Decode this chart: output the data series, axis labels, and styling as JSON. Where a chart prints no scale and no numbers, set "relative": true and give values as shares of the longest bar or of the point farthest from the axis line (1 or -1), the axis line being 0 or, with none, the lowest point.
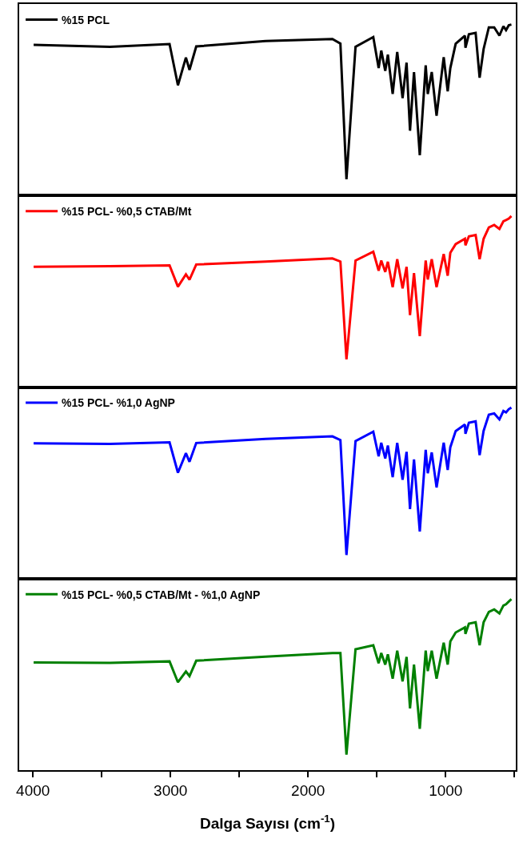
{
  "chart_data": [
    {
      "type": "line",
      "relative": true,
      "legend": "top left",
      "tick_labels": false,
      "xlim": [
        4100,
        490
      ],
      "x": [
        3995,
        3441,
        3007,
        2946,
        2888,
        2862,
        2813,
        2309,
        1823,
        1765,
        1721,
        1655,
        1526,
        1487,
        1468,
        1439,
        1420,
        1385,
        1352,
        1313,
        1284,
        1259,
        1230,
        1188,
        1145,
        1130,
        1101,
        1066,
        1014,
        985,
        966,
        927,
        860,
        856,
        831,
        782,
        753,
        724,
        686,
        647,
        609,
        580,
        561,
        541,
        522
      ],
      "series": [
        {
          "name": "%15 PCL",
          "color": "#000000",
          "values": [
            0.881,
            0.87,
            0.886,
            0.645,
            0.807,
            0.735,
            0.872,
            0.903,
            0.915,
            0.889,
            0.095,
            0.87,
            0.927,
            0.745,
            0.848,
            0.729,
            0.824,
            0.594,
            0.84,
            0.57,
            0.777,
            0.379,
            0.722,
            0.236,
            0.761,
            0.594,
            0.722,
            0.467,
            0.809,
            0.609,
            0.745,
            0.888,
            0.935,
            0.864,
            0.943,
            0.951,
            0.689,
            0.857,
            0.983,
            0.983,
            0.935,
            0.99,
            0.967,
            0.996,
            1.0
          ]
        }
      ]
    },
    {
      "type": "line",
      "relative": true,
      "legend": "top left",
      "tick_labels": false,
      "xlim": [
        4100,
        490
      ],
      "x": [
        3995,
        3441,
        3007,
        2946,
        2888,
        2862,
        2813,
        2309,
        1823,
        1765,
        1721,
        1655,
        1526,
        1487,
        1468,
        1439,
        1420,
        1385,
        1352,
        1313,
        1284,
        1259,
        1230,
        1188,
        1145,
        1130,
        1101,
        1066,
        1014,
        985,
        966,
        927,
        860,
        856,
        831,
        782,
        753,
        724,
        686,
        647,
        609,
        580,
        561,
        541,
        522
      ],
      "series": [
        {
          "name": "%15 PCL- %0,5 CTAB/Mt",
          "color": "#ff0000",
          "values": [
            0.703,
            0.707,
            0.712,
            0.587,
            0.659,
            0.628,
            0.717,
            0.734,
            0.752,
            0.734,
            0.162,
            0.74,
            0.792,
            0.681,
            0.74,
            0.673,
            0.733,
            0.584,
            0.748,
            0.577,
            0.703,
            0.421,
            0.666,
            0.298,
            0.74,
            0.629,
            0.748,
            0.584,
            0.778,
            0.651,
            0.785,
            0.836,
            0.867,
            0.829,
            0.881,
            0.889,
            0.748,
            0.867,
            0.933,
            0.948,
            0.925,
            0.97,
            0.977,
            0.985,
            1.0
          ]
        }
      ]
    },
    {
      "type": "line",
      "relative": true,
      "legend": "top left",
      "tick_labels": false,
      "xlim": [
        4100,
        490
      ],
      "x": [
        3995,
        3441,
        3007,
        2946,
        2888,
        2862,
        2813,
        2309,
        1823,
        1765,
        1721,
        1655,
        1526,
        1487,
        1468,
        1439,
        1420,
        1385,
        1352,
        1313,
        1284,
        1259,
        1230,
        1188,
        1145,
        1130,
        1101,
        1066,
        1014,
        985,
        966,
        927,
        860,
        856,
        831,
        782,
        753,
        724,
        686,
        647,
        609,
        580,
        561,
        541,
        522
      ],
      "series": [
        {
          "name": "%15 PCL- %1,0 AgNP",
          "color": "#0000ff",
          "values": [
            0.791,
            0.788,
            0.797,
            0.619,
            0.733,
            0.683,
            0.793,
            0.817,
            0.832,
            0.81,
            0.138,
            0.804,
            0.859,
            0.715,
            0.794,
            0.703,
            0.778,
            0.593,
            0.794,
            0.578,
            0.741,
            0.407,
            0.697,
            0.276,
            0.753,
            0.616,
            0.738,
            0.533,
            0.795,
            0.635,
            0.768,
            0.863,
            0.901,
            0.847,
            0.912,
            0.92,
            0.722,
            0.864,
            0.958,
            0.966,
            0.931,
            0.98,
            0.972,
            0.991,
            1.0
          ]
        }
      ]
    },
    {
      "type": "line",
      "relative": true,
      "legend": "top left",
      "tick_labels": "x",
      "xlim": [
        4100,
        490
      ],
      "xlabel": "Dalga Sayısı (cm$^{-1}$)",
      "xticks": [
        4000,
        {
          "value": 3500,
          "label": null
        },
        3000,
        {
          "value": 2500,
          "label": null
        },
        2000,
        {
          "value": 1500,
          "label": null
        },
        1000,
        {
          "value": 500,
          "label": null
        }
      ],
      "x": [
        3995,
        3441,
        3007,
        2946,
        2888,
        2862,
        2813,
        2309,
        1823,
        1765,
        1721,
        1655,
        1526,
        1487,
        1468,
        1439,
        1420,
        1385,
        1352,
        1313,
        1284,
        1259,
        1230,
        1188,
        1145,
        1130,
        1101,
        1066,
        1014,
        985,
        966,
        927,
        860,
        856,
        831,
        782,
        753,
        724,
        686,
        647,
        609,
        580,
        561,
        541,
        522
      ],
      "series": [
        {
          "name": "%15 PCL- %0,5 CTAB/Mt - %1,0 AgNP",
          "color": "#008000",
          "values": [
            0.63,
            0.627,
            0.636,
            0.514,
            0.577,
            0.55,
            0.64,
            0.663,
            0.685,
            0.685,
            0.091,
            0.707,
            0.73,
            0.625,
            0.685,
            0.617,
            0.677,
            0.535,
            0.699,
            0.519,
            0.662,
            0.361,
            0.617,
            0.242,
            0.699,
            0.579,
            0.699,
            0.535,
            0.745,
            0.617,
            0.752,
            0.805,
            0.835,
            0.797,
            0.857,
            0.865,
            0.73,
            0.865,
            0.925,
            0.94,
            0.917,
            0.963,
            0.97,
            0.986,
            1.0
          ]
        }
      ]
    }
  ]
}
